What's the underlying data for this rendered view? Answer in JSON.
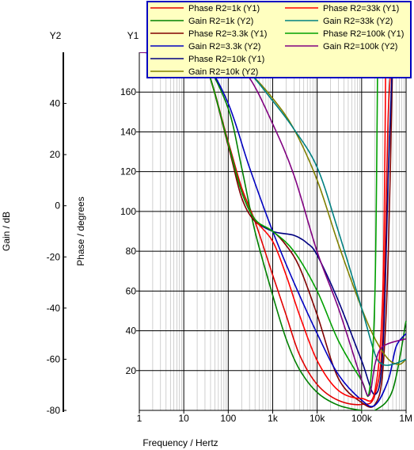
{
  "chart_data": {
    "type": "line",
    "xlabel": "Frequency / Hertz",
    "x_scale": "log",
    "xlim": [
      1,
      1000000
    ],
    "x_ticks": [
      {
        "value": 1,
        "label": "1"
      },
      {
        "value": 10,
        "label": "10"
      },
      {
        "value": 100,
        "label": "100"
      },
      {
        "value": 1000,
        "label": "1k"
      },
      {
        "value": 10000,
        "label": "10k"
      },
      {
        "value": 100000,
        "label": "100k"
      },
      {
        "value": 1000000,
        "label": "1M"
      }
    ],
    "y1": {
      "title": "Y1",
      "label": "Phase / degrees",
      "lim": [
        0,
        180
      ],
      "ticks": [
        "20",
        "40",
        "60",
        "80",
        "100",
        "120",
        "140",
        "160"
      ],
      "tick_values": [
        20,
        40,
        60,
        80,
        100,
        120,
        140,
        160
      ]
    },
    "y2": {
      "title": "Y2",
      "label": "Gain / dB",
      "lim": [
        -80,
        60
      ],
      "ticks": [
        "-80",
        "-60",
        "-40",
        "-20",
        "0",
        "20",
        "40"
      ],
      "tick_values": [
        -80,
        -60,
        -40,
        -20,
        0,
        20,
        40
      ]
    },
    "grid": true,
    "legend_position": "top-right",
    "series": [
      {
        "name": "Phase R2=1k (Y1)",
        "axis": "y1",
        "color": "#e00000",
        "points": [
          [
            1,
            180
          ],
          [
            10,
            179
          ],
          [
            30,
            174
          ],
          [
            100,
            135
          ],
          [
            200,
            112
          ],
          [
            400,
            95
          ],
          [
            1000,
            68
          ],
          [
            2000,
            48
          ],
          [
            4000,
            28
          ],
          [
            10000,
            13
          ],
          [
            30000,
            5
          ],
          [
            100000,
            3
          ],
          [
            200000,
            8
          ],
          [
            300000,
            40
          ],
          [
            400000,
            150
          ],
          [
            500000,
            180
          ]
        ]
      },
      {
        "name": "Gain R2=1k (Y2)",
        "axis": "y2",
        "color": "#008000",
        "points": [
          [
            1,
            60
          ],
          [
            10,
            59
          ],
          [
            30,
            56
          ],
          [
            100,
            38
          ],
          [
            200,
            15
          ],
          [
            400,
            -10
          ],
          [
            1000,
            -35
          ],
          [
            2000,
            -52
          ],
          [
            4000,
            -64
          ],
          [
            10000,
            -73
          ],
          [
            30000,
            -78
          ],
          [
            100000,
            -80
          ],
          [
            200000,
            -80
          ],
          [
            500000,
            -72
          ],
          [
            1000000,
            -45
          ]
        ]
      },
      {
        "name": "Phase R2=3.3k (Y1)",
        "axis": "y1",
        "color": "#800000",
        "points": [
          [
            1,
            180
          ],
          [
            10,
            179
          ],
          [
            30,
            174
          ],
          [
            100,
            133
          ],
          [
            200,
            107
          ],
          [
            400,
            95
          ],
          [
            1000,
            90
          ],
          [
            2000,
            83
          ],
          [
            4000,
            72
          ],
          [
            10000,
            48
          ],
          [
            30000,
            16
          ],
          [
            100000,
            4
          ],
          [
            200000,
            3
          ],
          [
            300000,
            20
          ],
          [
            400000,
            80
          ],
          [
            500000,
            180
          ]
        ]
      },
      {
        "name": "Gain R2=3.3k (Y2)",
        "axis": "y2",
        "color": "#0000c0",
        "points": [
          [
            1,
            60
          ],
          [
            10,
            59
          ],
          [
            30,
            56
          ],
          [
            100,
            40
          ],
          [
            300,
            15
          ],
          [
            1000,
            -10
          ],
          [
            3000,
            -30
          ],
          [
            10000,
            -50
          ],
          [
            30000,
            -66
          ],
          [
            100000,
            -76
          ],
          [
            200000,
            -78
          ],
          [
            400000,
            -68
          ],
          [
            600000,
            -55
          ],
          [
            1000000,
            -50
          ]
        ]
      },
      {
        "name": "Phase R2=10k (Y1)",
        "axis": "y1",
        "color": "#000080",
        "points": [
          [
            1,
            180
          ],
          [
            10,
            179
          ],
          [
            30,
            174
          ],
          [
            100,
            134
          ],
          [
            200,
            110
          ],
          [
            400,
            96
          ],
          [
            1000,
            90
          ],
          [
            3000,
            88
          ],
          [
            6000,
            84
          ],
          [
            10000,
            78
          ],
          [
            30000,
            55
          ],
          [
            100000,
            25
          ],
          [
            200000,
            8
          ],
          [
            300000,
            30
          ],
          [
            400000,
            120
          ],
          [
            500000,
            180
          ]
        ]
      },
      {
        "name": "Gain R2=10k (Y2)",
        "axis": "y2",
        "color": "#808000",
        "points": [
          [
            1,
            60
          ],
          [
            30,
            59
          ],
          [
            100,
            58
          ],
          [
            300,
            52
          ],
          [
            1000,
            42
          ],
          [
            3000,
            30
          ],
          [
            10000,
            10
          ],
          [
            30000,
            -15
          ],
          [
            100000,
            -40
          ],
          [
            200000,
            -52
          ],
          [
            400000,
            -60
          ],
          [
            700000,
            -62
          ],
          [
            1000000,
            -60
          ]
        ]
      },
      {
        "name": "Phase R2=33k (Y1)",
        "axis": "y1",
        "color": "#ff0000",
        "points": [
          [
            1,
            180
          ],
          [
            10,
            179
          ],
          [
            30,
            174
          ],
          [
            100,
            134
          ],
          [
            200,
            110
          ],
          [
            400,
            96
          ],
          [
            1000,
            85
          ],
          [
            2000,
            68
          ],
          [
            4000,
            48
          ],
          [
            10000,
            25
          ],
          [
            30000,
            10
          ],
          [
            100000,
            6
          ],
          [
            200000,
            10
          ],
          [
            300000,
            60
          ],
          [
            350000,
            180
          ]
        ]
      },
      {
        "name": "Gain R2=33k (Y2)",
        "axis": "y2",
        "color": "#008080",
        "points": [
          [
            1,
            60
          ],
          [
            30,
            59
          ],
          [
            100,
            58
          ],
          [
            300,
            52
          ],
          [
            1000,
            41
          ],
          [
            3000,
            30
          ],
          [
            10000,
            15
          ],
          [
            30000,
            -10
          ],
          [
            100000,
            -40
          ],
          [
            200000,
            -58
          ],
          [
            300000,
            -62
          ],
          [
            500000,
            -62
          ],
          [
            1000000,
            -60
          ]
        ]
      },
      {
        "name": "Phase R2=100k (Y1)",
        "axis": "y1",
        "color": "#00a000",
        "points": [
          [
            1,
            180
          ],
          [
            10,
            179
          ],
          [
            30,
            174
          ],
          [
            100,
            134
          ],
          [
            200,
            110
          ],
          [
            400,
            96
          ],
          [
            1000,
            90
          ],
          [
            3000,
            80
          ],
          [
            10000,
            60
          ],
          [
            30000,
            35
          ],
          [
            100000,
            15
          ],
          [
            150000,
            10
          ],
          [
            200000,
            60
          ],
          [
            230000,
            180
          ]
        ]
      },
      {
        "name": "Gain R2=100k (Y2)",
        "axis": "y2",
        "color": "#800080",
        "points": [
          [
            1,
            60
          ],
          [
            30,
            59
          ],
          [
            100,
            57
          ],
          [
            300,
            50
          ],
          [
            1000,
            32
          ],
          [
            3000,
            12
          ],
          [
            10000,
            -18
          ],
          [
            30000,
            -40
          ],
          [
            100000,
            -68
          ],
          [
            150000,
            -74
          ],
          [
            200000,
            -62
          ],
          [
            300000,
            -55
          ],
          [
            1000000,
            -52
          ]
        ]
      }
    ]
  }
}
